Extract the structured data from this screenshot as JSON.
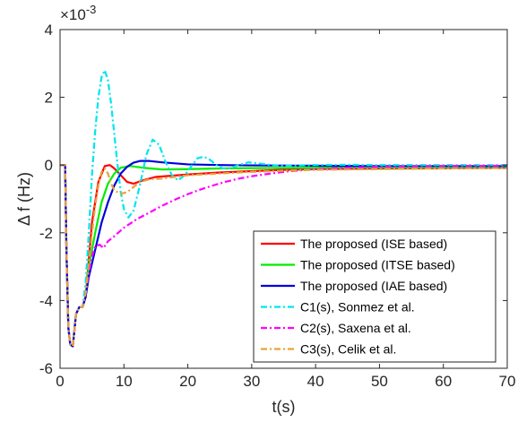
{
  "chart_data": {
    "type": "line",
    "xlabel": "t(s)",
    "ylabel": "Δ f (Hz)",
    "exponent_base": "×10",
    "exponent_power": "-3",
    "xlim": [
      0,
      70
    ],
    "ylim": [
      -6,
      4
    ],
    "xticks": [
      0,
      10,
      20,
      30,
      40,
      50,
      60,
      70
    ],
    "yticks": [
      -6,
      -4,
      -2,
      0,
      2,
      4
    ],
    "grid": false,
    "legend_position": "bottom-right",
    "series": [
      {
        "name": "The proposed (ISE based)",
        "color": "#ff0000",
        "dash": "solid",
        "points": [
          [
            0,
            0
          ],
          [
            0.8,
            0
          ],
          [
            1.0,
            -2.5
          ],
          [
            1.3,
            -4.8
          ],
          [
            1.6,
            -5.3
          ],
          [
            2.0,
            -5.35
          ],
          [
            2.5,
            -4.4
          ],
          [
            3.0,
            -4.2
          ],
          [
            3.5,
            -4.2
          ],
          [
            4.0,
            -3.9
          ],
          [
            4.5,
            -2.8
          ],
          [
            5.0,
            -1.7
          ],
          [
            6.0,
            -0.5
          ],
          [
            7.0,
            -0.03
          ],
          [
            7.8,
            0.0
          ],
          [
            8.5,
            -0.1
          ],
          [
            9.5,
            -0.3
          ],
          [
            10.5,
            -0.5
          ],
          [
            11.5,
            -0.55
          ],
          [
            13,
            -0.45
          ],
          [
            15,
            -0.35
          ],
          [
            20,
            -0.28
          ],
          [
            25,
            -0.22
          ],
          [
            30,
            -0.18
          ],
          [
            35,
            -0.14
          ],
          [
            40,
            -0.12
          ],
          [
            50,
            -0.1
          ],
          [
            60,
            -0.09
          ],
          [
            70,
            -0.08
          ]
        ]
      },
      {
        "name": "The proposed (ITSE based)",
        "color": "#00ee00",
        "dash": "solid",
        "points": [
          [
            0,
            0
          ],
          [
            0.8,
            0
          ],
          [
            1.0,
            -2.5
          ],
          [
            1.3,
            -4.8
          ],
          [
            1.6,
            -5.3
          ],
          [
            2.0,
            -5.35
          ],
          [
            2.5,
            -4.4
          ],
          [
            3.0,
            -4.2
          ],
          [
            3.5,
            -4.2
          ],
          [
            4.0,
            -3.9
          ],
          [
            4.5,
            -3.0
          ],
          [
            5.5,
            -2.0
          ],
          [
            6.5,
            -1.1
          ],
          [
            7.5,
            -0.55
          ],
          [
            8.5,
            -0.25
          ],
          [
            9.5,
            -0.08
          ],
          [
            11,
            -0.03
          ],
          [
            13,
            -0.08
          ],
          [
            16,
            -0.13
          ],
          [
            20,
            -0.12
          ],
          [
            25,
            -0.1
          ],
          [
            30,
            -0.09
          ],
          [
            40,
            -0.08
          ],
          [
            50,
            -0.07
          ],
          [
            60,
            -0.07
          ],
          [
            70,
            -0.06
          ]
        ]
      },
      {
        "name": "The proposed (IAE based)",
        "color": "#0000dd",
        "dash": "solid",
        "points": [
          [
            0,
            0
          ],
          [
            0.8,
            0
          ],
          [
            1.0,
            -2.5
          ],
          [
            1.3,
            -4.8
          ],
          [
            1.6,
            -5.3
          ],
          [
            2.0,
            -5.35
          ],
          [
            2.5,
            -4.4
          ],
          [
            3.0,
            -4.2
          ],
          [
            3.5,
            -4.2
          ],
          [
            4.0,
            -3.9
          ],
          [
            4.5,
            -3.3
          ],
          [
            5.5,
            -2.5
          ],
          [
            6.5,
            -1.7
          ],
          [
            7.5,
            -1.1
          ],
          [
            8.5,
            -0.6
          ],
          [
            9.5,
            -0.25
          ],
          [
            10.5,
            -0.05
          ],
          [
            11.5,
            0.07
          ],
          [
            12.5,
            0.12
          ],
          [
            14,
            0.12
          ],
          [
            16,
            0.08
          ],
          [
            18,
            0.05
          ],
          [
            20,
            0.02
          ],
          [
            25,
            0.0
          ],
          [
            30,
            -0.01
          ],
          [
            40,
            -0.02
          ],
          [
            50,
            -0.03
          ],
          [
            60,
            -0.03
          ],
          [
            70,
            -0.03
          ]
        ]
      },
      {
        "name": "C1(s), Sonmez et al.",
        "color": "#00e5ee",
        "dash": "7,3,2,3",
        "points": [
          [
            0,
            0
          ],
          [
            0.8,
            0
          ],
          [
            1.0,
            -2.5
          ],
          [
            1.3,
            -4.8
          ],
          [
            1.6,
            -5.3
          ],
          [
            2.0,
            -5.35
          ],
          [
            2.5,
            -4.4
          ],
          [
            3.0,
            -4.2
          ],
          [
            3.5,
            -4.2
          ],
          [
            4.0,
            -3.5
          ],
          [
            4.5,
            -2.0
          ],
          [
            5.0,
            -0.3
          ],
          [
            5.5,
            1.0
          ],
          [
            6.0,
            2.0
          ],
          [
            6.5,
            2.6
          ],
          [
            7.0,
            2.8
          ],
          [
            7.5,
            2.5
          ],
          [
            8.0,
            1.8
          ],
          [
            8.5,
            0.9
          ],
          [
            9.0,
            0.0
          ],
          [
            9.5,
            -0.8
          ],
          [
            10,
            -1.3
          ],
          [
            10.7,
            -1.55
          ],
          [
            11.5,
            -1.35
          ],
          [
            12.5,
            -0.6
          ],
          [
            13.5,
            0.3
          ],
          [
            14.5,
            0.75
          ],
          [
            15.5,
            0.6
          ],
          [
            16.5,
            0.1
          ],
          [
            17.5,
            -0.3
          ],
          [
            18.5,
            -0.45
          ],
          [
            19.5,
            -0.3
          ],
          [
            20.5,
            -0.05
          ],
          [
            21.5,
            0.2
          ],
          [
            22.5,
            0.25
          ],
          [
            23.5,
            0.15
          ],
          [
            24.5,
            0.0
          ],
          [
            25.5,
            -0.1
          ],
          [
            26.5,
            -0.1
          ],
          [
            28,
            0.0
          ],
          [
            29.5,
            0.08
          ],
          [
            31,
            0.05
          ],
          [
            33,
            0.0
          ],
          [
            35,
            -0.02
          ],
          [
            40,
            0.0
          ],
          [
            45,
            0.01
          ],
          [
            50,
            0.0
          ],
          [
            60,
            0.0
          ],
          [
            70,
            0.0
          ]
        ]
      },
      {
        "name": "C2(s), Saxena et al.",
        "color": "#ff00ff",
        "dash": "7,3,2,3",
        "points": [
          [
            0,
            0
          ],
          [
            0.8,
            0
          ],
          [
            1.0,
            -2.5
          ],
          [
            1.3,
            -4.8
          ],
          [
            1.6,
            -5.3
          ],
          [
            2.0,
            -5.35
          ],
          [
            2.5,
            -4.4
          ],
          [
            3.0,
            -4.2
          ],
          [
            3.5,
            -4.2
          ],
          [
            4.0,
            -3.8
          ],
          [
            4.5,
            -3.2
          ],
          [
            5.0,
            -2.7
          ],
          [
            5.5,
            -2.4
          ],
          [
            6.2,
            -2.35
          ],
          [
            6.8,
            -2.45
          ],
          [
            7.5,
            -2.25
          ],
          [
            8.5,
            -2.1
          ],
          [
            10,
            -1.85
          ],
          [
            12,
            -1.6
          ],
          [
            14,
            -1.4
          ],
          [
            16,
            -1.2
          ],
          [
            18,
            -1.02
          ],
          [
            20,
            -0.86
          ],
          [
            22,
            -0.72
          ],
          [
            24,
            -0.6
          ],
          [
            26,
            -0.49
          ],
          [
            28,
            -0.4
          ],
          [
            30,
            -0.33
          ],
          [
            33,
            -0.25
          ],
          [
            36,
            -0.18
          ],
          [
            40,
            -0.12
          ],
          [
            45,
            -0.08
          ],
          [
            50,
            -0.05
          ],
          [
            60,
            -0.03
          ],
          [
            70,
            -0.02
          ]
        ]
      },
      {
        "name": "C3(s), Celik et al.",
        "color": "#e8a23a",
        "dash": "7,3,2,3",
        "points": [
          [
            0,
            0
          ],
          [
            0.8,
            0
          ],
          [
            1.0,
            -2.5
          ],
          [
            1.3,
            -4.8
          ],
          [
            1.6,
            -5.3
          ],
          [
            2.0,
            -5.35
          ],
          [
            2.5,
            -4.4
          ],
          [
            3.0,
            -4.2
          ],
          [
            3.5,
            -4.2
          ],
          [
            4.0,
            -3.8
          ],
          [
            4.5,
            -2.9
          ],
          [
            5.0,
            -2.0
          ],
          [
            5.5,
            -1.2
          ],
          [
            6.0,
            -0.6
          ],
          [
            6.5,
            -0.2
          ],
          [
            7.0,
            -0.1
          ],
          [
            7.5,
            -0.25
          ],
          [
            8.0,
            -0.55
          ],
          [
            8.5,
            -0.75
          ],
          [
            9.5,
            -0.85
          ],
          [
            10.5,
            -0.8
          ],
          [
            11.5,
            -0.65
          ],
          [
            12.5,
            -0.5
          ],
          [
            14,
            -0.42
          ],
          [
            16,
            -0.4
          ],
          [
            18,
            -0.35
          ],
          [
            20,
            -0.3
          ],
          [
            25,
            -0.25
          ],
          [
            30,
            -0.2
          ],
          [
            40,
            -0.14
          ],
          [
            50,
            -0.12
          ],
          [
            60,
            -0.1
          ],
          [
            70,
            -0.09
          ]
        ]
      }
    ]
  }
}
